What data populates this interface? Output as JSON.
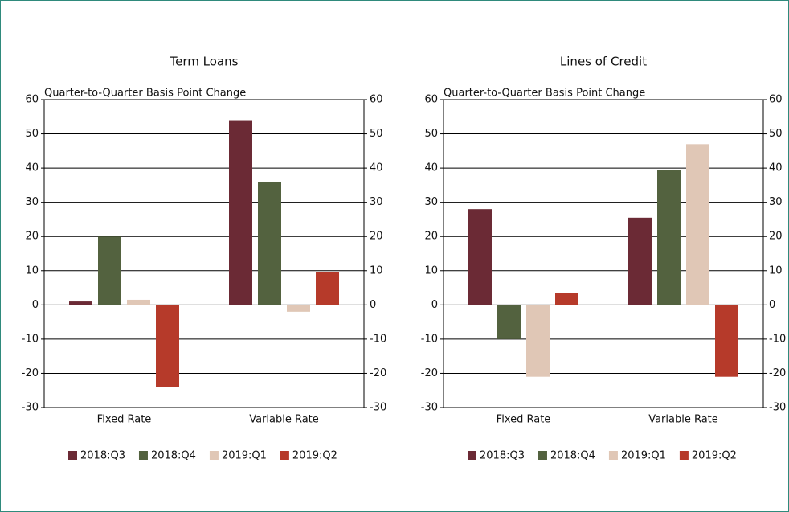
{
  "chart_data": [
    {
      "type": "bar",
      "title": "Term Loans",
      "ylabel": "Quarter-to-Quarter Basis Point Change",
      "categories": [
        "Fixed Rate",
        "Variable Rate"
      ],
      "series": [
        {
          "name": "2018:Q3",
          "color": "#6b2a35",
          "values": [
            1,
            54
          ]
        },
        {
          "name": "2018:Q4",
          "color": "#53623f",
          "values": [
            20,
            36
          ]
        },
        {
          "name": "2019:Q1",
          "color": "#e0c7b6",
          "values": [
            1.5,
            -2
          ]
        },
        {
          "name": "2019:Q2",
          "color": "#b63a2a",
          "values": [
            -24,
            9.5
          ]
        }
      ],
      "ylim": [
        -30,
        60
      ],
      "yticks": [
        -30,
        -20,
        -10,
        0,
        10,
        20,
        30,
        40,
        50,
        60
      ],
      "y2lim": [
        -30,
        60
      ],
      "y2ticks": [
        -30,
        -20,
        -10,
        0,
        10,
        20,
        30,
        40,
        50,
        60
      ],
      "grid": true,
      "legend": "bottom"
    },
    {
      "type": "bar",
      "title": "Lines of Credit",
      "ylabel": "Quarter-to-Quarter Basis Point Change",
      "categories": [
        "Fixed Rate",
        "Variable Rate"
      ],
      "series": [
        {
          "name": "2018:Q3",
          "color": "#6b2a35",
          "values": [
            28,
            25.5
          ]
        },
        {
          "name": "2018:Q4",
          "color": "#53623f",
          "values": [
            -10,
            39.5
          ]
        },
        {
          "name": "2019:Q1",
          "color": "#e0c7b6",
          "values": [
            -21,
            47
          ]
        },
        {
          "name": "2019:Q2",
          "color": "#b63a2a",
          "values": [
            3.5,
            -21
          ]
        }
      ],
      "ylim": [
        -30,
        60
      ],
      "yticks": [
        -30,
        -20,
        -10,
        0,
        10,
        20,
        30,
        40,
        50,
        60
      ],
      "y2lim": [
        -30,
        60
      ],
      "y2ticks": [
        -30,
        -20,
        -10,
        0,
        10,
        20,
        30,
        40,
        50,
        60
      ],
      "grid": true,
      "legend": "bottom"
    }
  ]
}
